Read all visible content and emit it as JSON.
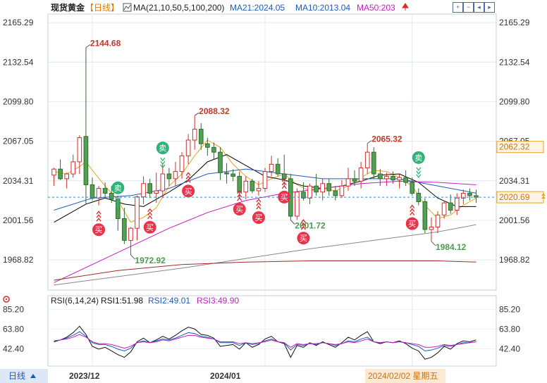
{
  "header": {
    "instrument": "现货黄金",
    "period": "【日线】",
    "ma_label": "MA(21,10,50,5,100,200)",
    "ma21": "MA21:2024.05",
    "ma10": "MA10:2013.04",
    "ma50": "MA50:203"
  },
  "rsi_header": {
    "label": "RSI(6,14,24)",
    "rsi1": "RSI1:51.98",
    "rsi2": "RSI2:49.01",
    "rsi3": "RSI3:49.90"
  },
  "footer": {
    "period_button": "日线",
    "date_labels": [
      "2023/12",
      "2024/01"
    ],
    "cursor_date": "2024/02/02 星期五"
  },
  "toolbar_icons": [
    "zoom-in-icon",
    "zoom-out-icon",
    "move-left-icon",
    "move-right-icon",
    "settings-icon",
    "fullscreen-icon"
  ],
  "colors": {
    "up": "#d62b2b",
    "down": "#52a152",
    "ma5": "#e8a31e",
    "ma10": "#000000",
    "ma21": "#1e5bb8",
    "ma50": "#c21fc2",
    "ma100": "#888888",
    "ma200": "#9b2b2b",
    "rsi1": "#111111",
    "rsi2": "#1e5bb8",
    "rsi3": "#c21fc2"
  },
  "chart_data": {
    "type": "candlestick",
    "y_ticks": [
      "2165.29",
      "2132.54",
      "2099.80",
      "2067.05",
      "2034.31",
      "2001.56",
      "1968.82"
    ],
    "ylim": [
      1945,
      2170
    ],
    "price_labels": {
      "right_upper": "2062.32",
      "right_current": "2020.69",
      "current_value": 2020.69
    },
    "candles": [
      [
        2039,
        2045,
        2030,
        2044
      ],
      [
        2044,
        2052,
        2035,
        2036
      ],
      [
        2036,
        2041,
        2028,
        2040
      ],
      [
        2040,
        2056,
        2037,
        2050
      ],
      [
        2050,
        2072,
        2040,
        2070
      ],
      [
        2071,
        2144.68,
        2015,
        2031
      ],
      [
        2031,
        2037,
        2018,
        2020
      ],
      [
        2020,
        2030,
        2014,
        2028
      ],
      [
        2028,
        2033,
        2020,
        2024
      ],
      [
        2024,
        2030,
        2016,
        2019
      ],
      [
        2019,
        2022,
        1993,
        2003
      ],
      [
        2003,
        2012,
        1982,
        1985
      ],
      [
        1985,
        1996,
        1972.92,
        1995
      ],
      [
        1995,
        2022,
        1985,
        2021
      ],
      [
        2021,
        2038,
        2015,
        2032
      ],
      [
        2032,
        2036,
        2020,
        2024
      ],
      [
        2024,
        2041,
        2016,
        2026
      ],
      [
        2026,
        2048,
        2020,
        2040
      ],
      [
        2040,
        2045,
        2030,
        2036
      ],
      [
        2036,
        2050,
        2030,
        2042
      ],
      [
        2042,
        2058,
        2036,
        2055
      ],
      [
        2055,
        2073,
        2048,
        2068
      ],
      [
        2068,
        2088.32,
        2060,
        2077
      ],
      [
        2077,
        2082,
        2060,
        2065
      ],
      [
        2065,
        2070,
        2055,
        2062
      ],
      [
        2062,
        2066,
        2052,
        2058
      ],
      [
        2058,
        2062,
        2035,
        2041
      ],
      [
        2041,
        2049,
        2032,
        2040
      ],
      [
        2040,
        2044,
        2034,
        2038
      ],
      [
        2038,
        2042,
        2020,
        2025
      ],
      [
        2025,
        2038,
        2019,
        2034
      ],
      [
        2034,
        2036,
        2024,
        2026
      ],
      [
        2026,
        2034,
        2022,
        2028
      ],
      [
        2028,
        2045,
        2025,
        2042
      ],
      [
        2042,
        2055,
        2038,
        2048
      ],
      [
        2048,
        2053,
        2038,
        2040
      ],
      [
        2040,
        2056,
        2030,
        2036
      ],
      [
        2036,
        2040,
        2001.72,
        2005
      ],
      [
        2005,
        2028,
        2002,
        2025
      ],
      [
        2025,
        2033,
        2018,
        2020
      ],
      [
        2020,
        2032,
        2015,
        2030
      ],
      [
        2030,
        2040,
        2022,
        2025
      ],
      [
        2025,
        2036,
        2018,
        2032
      ],
      [
        2032,
        2036,
        2022,
        2026
      ],
      [
        2026,
        2030,
        2018,
        2022
      ],
      [
        2022,
        2035,
        2020,
        2030
      ],
      [
        2030,
        2045,
        2026,
        2036
      ],
      [
        2036,
        2043,
        2030,
        2034
      ],
      [
        2034,
        2050,
        2028,
        2045
      ],
      [
        2045,
        2065.32,
        2040,
        2058
      ],
      [
        2058,
        2062,
        2036,
        2040
      ],
      [
        2040,
        2044,
        2030,
        2036
      ],
      [
        2036,
        2041,
        2030,
        2038
      ],
      [
        2038,
        2042,
        2032,
        2035
      ],
      [
        2035,
        2040,
        2028,
        2037
      ],
      [
        2037,
        2043,
        2030,
        2033
      ],
      [
        2033,
        2037,
        2022,
        2024
      ],
      [
        2024,
        2028,
        2014,
        2017
      ],
      [
        2017,
        2020,
        1991,
        1994
      ],
      [
        1994,
        2004,
        1984.12,
        1996
      ],
      [
        1996,
        2009,
        1991,
        2006
      ],
      [
        2006,
        2018,
        2003,
        2016
      ],
      [
        2016,
        2023,
        2007,
        2010
      ],
      [
        2010,
        2024,
        2006,
        2020
      ],
      [
        2020,
        2027,
        2015,
        2024
      ],
      [
        2024,
        2028,
        2018,
        2022
      ],
      [
        2022,
        2027,
        2016,
        2020.69
      ]
    ],
    "high_low_labels": [
      {
        "index": 5,
        "value": 2144.68,
        "text": "2144.68",
        "pos": "above",
        "kind": "high"
      },
      {
        "index": 12,
        "value": 1972.92,
        "text": "1972.92",
        "pos": "below",
        "kind": "low"
      },
      {
        "index": 22,
        "value": 2088.32,
        "text": "2088.32",
        "pos": "above",
        "kind": "high"
      },
      {
        "index": 37,
        "value": 2001.72,
        "text": "2001.72",
        "pos": "below",
        "kind": "low"
      },
      {
        "index": 49,
        "value": 2065.32,
        "text": "2065.32",
        "pos": "above",
        "kind": "high"
      },
      {
        "index": 59,
        "value": 1984.12,
        "text": "1984.12",
        "pos": "below",
        "kind": "low"
      }
    ],
    "signals": [
      {
        "index": 7,
        "text": "买",
        "type": "buy",
        "price": 1995
      },
      {
        "index": 10,
        "text": "卖",
        "type": "sell",
        "price": 2025
      },
      {
        "index": 15,
        "text": "买",
        "type": "buy",
        "price": 1997
      },
      {
        "index": 17,
        "text": "卖",
        "type": "sell",
        "price": 2058
      },
      {
        "index": 21,
        "text": "买",
        "type": "buy",
        "price": 2027
      },
      {
        "index": 29,
        "text": "买",
        "type": "buy",
        "price": 2012
      },
      {
        "index": 32,
        "text": "买",
        "type": "buy",
        "price": 2005
      },
      {
        "index": 36,
        "text": "买",
        "type": "buy",
        "price": 2022
      },
      {
        "index": 39,
        "text": "买",
        "type": "buy",
        "price": 1988
      },
      {
        "index": 56,
        "text": "买",
        "type": "buy",
        "price": 2000
      },
      {
        "index": 57,
        "text": "卖",
        "type": "sell",
        "price": 2050
      }
    ],
    "ma_lines": [
      {
        "name": "MA5",
        "color_key": "ma5",
        "points": [
          [
            0,
            2042
          ],
          [
            2,
            2040
          ],
          [
            4,
            2046
          ],
          [
            5,
            2050
          ],
          [
            6,
            2043
          ],
          [
            8,
            2030
          ],
          [
            10,
            2018
          ],
          [
            12,
            2000
          ],
          [
            14,
            2004
          ],
          [
            16,
            2012
          ],
          [
            18,
            2030
          ],
          [
            20,
            2040
          ],
          [
            22,
            2055
          ],
          [
            24,
            2068
          ],
          [
            26,
            2062
          ],
          [
            28,
            2048
          ],
          [
            30,
            2038
          ],
          [
            32,
            2031
          ],
          [
            34,
            2036
          ],
          [
            36,
            2040
          ],
          [
            38,
            2031
          ],
          [
            40,
            2026
          ],
          [
            42,
            2028
          ],
          [
            44,
            2026
          ],
          [
            46,
            2030
          ],
          [
            48,
            2037
          ],
          [
            50,
            2043
          ],
          [
            52,
            2042
          ],
          [
            54,
            2037
          ],
          [
            56,
            2030
          ],
          [
            58,
            2014
          ],
          [
            60,
            2003
          ],
          [
            62,
            2006
          ],
          [
            64,
            2014
          ],
          [
            66,
            2020
          ]
        ]
      },
      {
        "name": "MA10",
        "color_key": "ma10",
        "points": [
          [
            0,
            2000
          ],
          [
            5,
            2015
          ],
          [
            8,
            2020
          ],
          [
            11,
            2015
          ],
          [
            14,
            2013
          ],
          [
            18,
            2025
          ],
          [
            21,
            2035
          ],
          [
            24,
            2050
          ],
          [
            27,
            2056
          ],
          [
            30,
            2047
          ],
          [
            33,
            2038
          ],
          [
            36,
            2035
          ],
          [
            39,
            2030
          ],
          [
            42,
            2028
          ],
          [
            45,
            2030
          ],
          [
            48,
            2034
          ],
          [
            51,
            2039
          ],
          [
            54,
            2040
          ],
          [
            57,
            2033
          ],
          [
            60,
            2020
          ],
          [
            63,
            2013
          ],
          [
            66,
            2013
          ]
        ]
      },
      {
        "name": "MA21",
        "color_key": "ma21",
        "points": [
          [
            0,
            2010
          ],
          [
            6,
            2020
          ],
          [
            12,
            2022
          ],
          [
            18,
            2028
          ],
          [
            24,
            2040
          ],
          [
            30,
            2044
          ],
          [
            36,
            2040
          ],
          [
            42,
            2036
          ],
          [
            48,
            2036
          ],
          [
            54,
            2036
          ],
          [
            60,
            2030
          ],
          [
            66,
            2024.05
          ]
        ]
      },
      {
        "name": "MA50",
        "color_key": "ma50",
        "points": [
          [
            0,
            1950
          ],
          [
            6,
            1965
          ],
          [
            12,
            1980
          ],
          [
            18,
            1995
          ],
          [
            24,
            2008
          ],
          [
            30,
            2018
          ],
          [
            36,
            2024
          ],
          [
            42,
            2028
          ],
          [
            48,
            2032
          ],
          [
            54,
            2034
          ],
          [
            60,
            2033
          ],
          [
            66,
            2031
          ]
        ]
      },
      {
        "name": "MA100",
        "color_key": "ma100",
        "points": [
          [
            0,
            1948
          ],
          [
            10,
            1955
          ],
          [
            20,
            1962
          ],
          [
            30,
            1970
          ],
          [
            40,
            1978
          ],
          [
            50,
            1985
          ],
          [
            60,
            1992
          ],
          [
            66,
            1998
          ]
        ]
      },
      {
        "name": "MA200",
        "color_key": "ma200",
        "points": [
          [
            0,
            1952
          ],
          [
            10,
            1960
          ],
          [
            20,
            1965
          ],
          [
            30,
            1967
          ],
          [
            40,
            1968
          ],
          [
            50,
            1968
          ],
          [
            60,
            1968
          ],
          [
            66,
            1967
          ]
        ]
      }
    ],
    "rsi": {
      "y_ticks": [
        "85.20",
        "63.80",
        "42.40"
      ],
      "ylim": [
        25,
        88
      ],
      "series": [
        {
          "name": "RSI1",
          "color_key": "rsi1",
          "values": [
            50,
            52,
            55,
            60,
            67,
            58,
            45,
            42,
            44,
            40,
            36,
            33,
            39,
            50,
            54,
            49,
            52,
            56,
            53,
            57,
            62,
            66,
            64,
            58,
            57,
            54,
            45,
            46,
            47,
            42,
            49,
            44,
            47,
            53,
            56,
            50,
            48,
            33,
            46,
            44,
            49,
            46,
            50,
            47,
            44,
            49,
            55,
            52,
            57,
            61,
            50,
            48,
            50,
            49,
            51,
            48,
            43,
            40,
            31,
            33,
            38,
            45,
            42,
            48,
            51,
            50,
            52
          ]
        },
        {
          "name": "RSI2",
          "color_key": "rsi2",
          "values": [
            51,
            52,
            54,
            57,
            61,
            56,
            49,
            47,
            47,
            45,
            42,
            40,
            43,
            49,
            51,
            49,
            51,
            53,
            52,
            54,
            57,
            60,
            59,
            56,
            55,
            53,
            49,
            49,
            49,
            46,
            49,
            47,
            48,
            51,
            53,
            50,
            49,
            41,
            47,
            46,
            48,
            47,
            49,
            48,
            46,
            48,
            51,
            50,
            53,
            55,
            50,
            49,
            50,
            49,
            50,
            49,
            47,
            45,
            40,
            41,
            43,
            46,
            45,
            47,
            49,
            49,
            50
          ]
        },
        {
          "name": "RSI3",
          "color_key": "rsi3",
          "values": [
            51,
            52,
            53,
            55,
            58,
            55,
            50,
            48,
            48,
            47,
            45,
            43,
            45,
            49,
            50,
            49,
            50,
            52,
            51,
            53,
            55,
            57,
            57,
            55,
            54,
            53,
            50,
            50,
            50,
            48,
            49,
            48,
            49,
            50,
            52,
            50,
            49,
            44,
            48,
            47,
            48,
            48,
            49,
            48,
            47,
            48,
            50,
            49,
            51,
            53,
            50,
            49,
            50,
            49,
            50,
            49,
            48,
            47,
            44,
            44,
            45,
            47,
            46,
            47,
            48,
            49,
            50
          ]
        }
      ]
    }
  }
}
